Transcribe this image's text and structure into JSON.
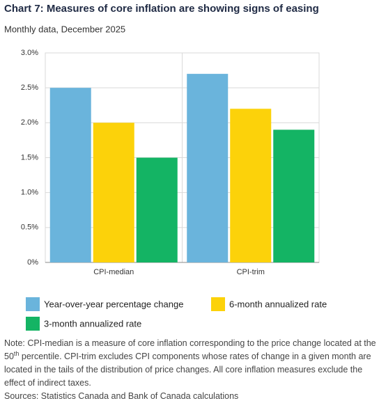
{
  "chart_data": {
    "type": "bar",
    "title": "Chart 7: Measures of core inflation are showing signs of easing",
    "subtitle": "Monthly data, December 2025",
    "categories": [
      "CPI-median",
      "CPI-trim"
    ],
    "series": [
      {
        "name": "Year-over-year percentage change",
        "color": "#6ab4dc",
        "values": [
          2.5,
          2.7
        ]
      },
      {
        "name": "6-month annualized rate",
        "color": "#fcd20a",
        "values": [
          2.0,
          2.2
        ]
      },
      {
        "name": "3-month annualized rate",
        "color": "#14b464",
        "values": [
          1.5,
          1.9
        ]
      }
    ],
    "ylim": [
      0,
      3.0
    ],
    "yticks": [
      {
        "value": 0,
        "label": "0%"
      },
      {
        "value": 0.5,
        "label": "0.5%"
      },
      {
        "value": 1.0,
        "label": "1.0%"
      },
      {
        "value": 1.5,
        "label": "1.5%"
      },
      {
        "value": 2.0,
        "label": "2.0%"
      },
      {
        "value": 2.5,
        "label": "2.5%"
      },
      {
        "value": 3.0,
        "label": "3.0%"
      }
    ],
    "grid": true,
    "note": [
      "Note: CPI-median is a measure of core inflation corresponding to the price change located at the 50",
      "th",
      " percentile. CPI-trim excludes CPI components whose rates of change in a given month are located in the tails of the distribution of price changes. All core inflation measures exclude the effect of indirect taxes."
    ],
    "sources": "Sources: Statistics Canada and Bank of Canada calculations"
  }
}
